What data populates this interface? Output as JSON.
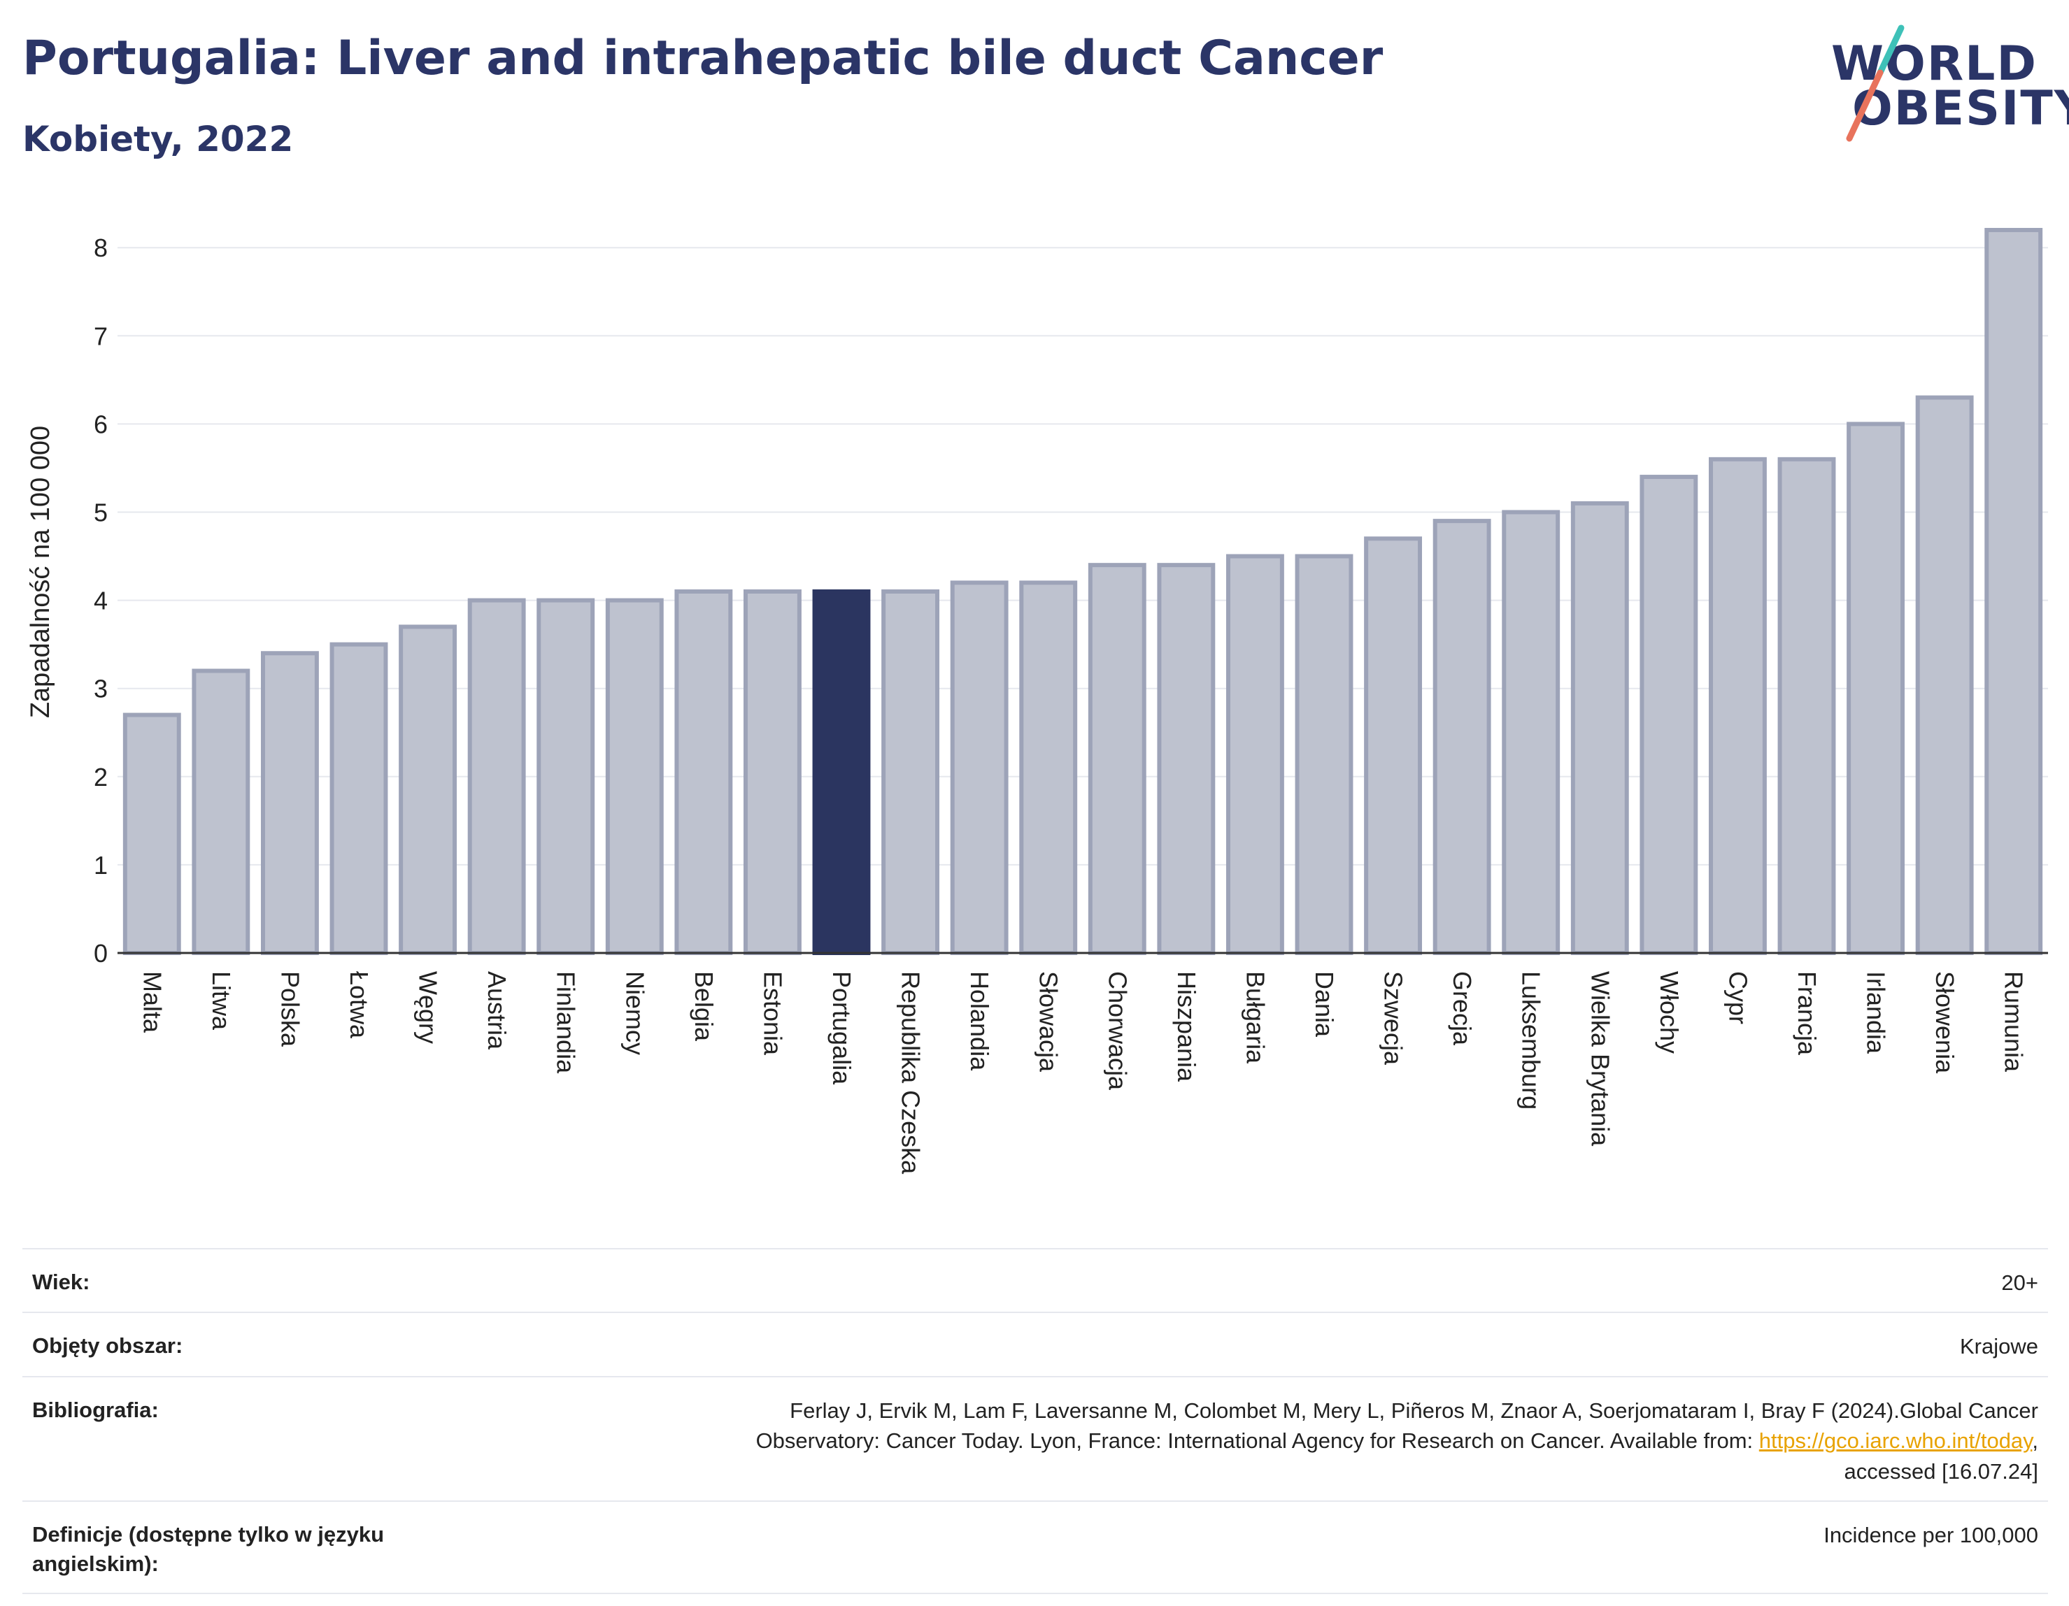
{
  "header": {
    "title": "Portugalia: Liver and intrahepatic bile duct Cancer",
    "subtitle": "Kobiety, 2022"
  },
  "logo": {
    "line1": "WORLD",
    "line2": "OBESITY",
    "colors": {
      "text": "#2b3567",
      "slash_top": "#3ec1b8",
      "slash_bottom": "#e8735c"
    }
  },
  "colors": {
    "bar": "#bec2cf",
    "bar_stroke": "#9da3b8",
    "highlight": "#2b3560",
    "grid": "#e6e8ee",
    "axis": "#333333"
  },
  "chart_data": {
    "type": "bar",
    "title": "Portugalia: Liver and intrahepatic bile duct Cancer",
    "subtitle": "Kobiety, 2022",
    "ylabel": "Zapadalność na 100 000",
    "xlabel": "",
    "ylim": [
      0,
      8.3
    ],
    "yticks": [
      0,
      1,
      2,
      3,
      4,
      5,
      6,
      7,
      8
    ],
    "grid": true,
    "highlight": "Portugalia",
    "categories": [
      "Malta",
      "Litwa",
      "Polska",
      "Łotwa",
      "Węgry",
      "Austria",
      "Finlandia",
      "Niemcy",
      "Belgia",
      "Estonia",
      "Portugalia",
      "Republika Czeska",
      "Holandia",
      "Słowacja",
      "Chorwacja",
      "Hiszpania",
      "Bułgaria",
      "Dania",
      "Szwecja",
      "Grecja",
      "Luksemburg",
      "Wielka Brytania",
      "Włochy",
      "Cypr",
      "Francja",
      "Irlandia",
      "Słowenia",
      "Rumunia"
    ],
    "values": [
      2.7,
      3.2,
      3.4,
      3.5,
      3.7,
      4.0,
      4.0,
      4.0,
      4.1,
      4.1,
      4.1,
      4.1,
      4.2,
      4.2,
      4.4,
      4.4,
      4.5,
      4.5,
      4.7,
      4.9,
      5.0,
      5.1,
      5.4,
      5.6,
      5.6,
      6.0,
      6.3,
      8.2
    ]
  },
  "meta": {
    "rows": [
      {
        "label": "Wiek:",
        "value": "20+"
      },
      {
        "label": "Objęty obszar:",
        "value": "Krajowe"
      },
      {
        "label": "Bibliografia:",
        "value_lines": [
          "Ferlay J, Ervik M, Lam F, Laversanne M, Colombet M, Mery L, Piñeros M, Znaor A, Soerjomataram I, Bray F (2024).Global Cancer",
          "Observatory: Cancer Today. Lyon, France: International Agency for Research on Cancer. Available from: ",
          "https://gco.iarc.who.int/today",
          ",",
          "accessed [16.07.24]"
        ]
      },
      {
        "label": "Definicje (dostępne tylko w języku angielskim):",
        "value": "Incidence per 100,000"
      }
    ]
  }
}
